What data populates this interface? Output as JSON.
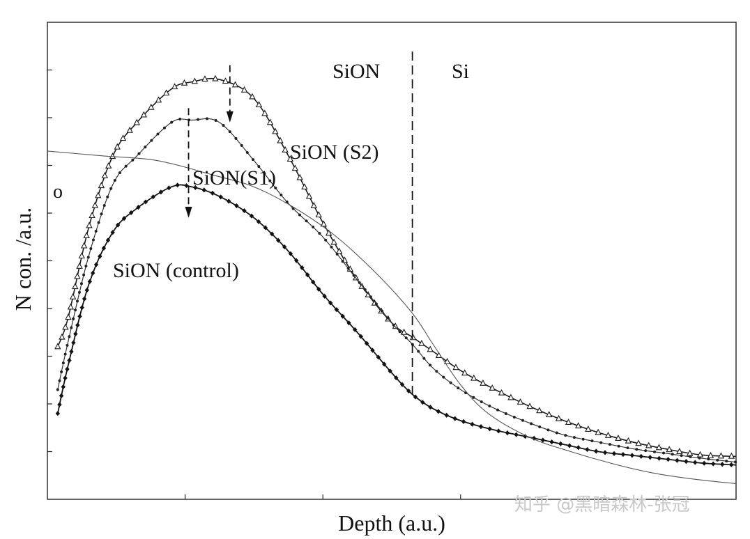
{
  "chart_data": {
    "type": "line",
    "xlabel": "Depth (a.u.)",
    "ylabel": "N con. /a.u.",
    "xlim": [
      0,
      100
    ],
    "ylim": [
      0,
      100
    ],
    "grid": false,
    "region_labels": [
      "SiON",
      "Si"
    ],
    "interface_x": 53,
    "axis_label_o": "o",
    "series": [
      {
        "name": "SiON (S2)",
        "marker": "triangle",
        "x": [
          1.5,
          3,
          6,
          9.5,
          13,
          18,
          21,
          25,
          30,
          35,
          40,
          45,
          50,
          53,
          56,
          60,
          65,
          70,
          75,
          80,
          85,
          90,
          95,
          100
        ],
        "y": [
          32,
          38,
          57,
          72,
          79,
          86,
          87.5,
          88,
          84,
          72,
          58,
          46,
          37,
          34,
          31,
          27,
          23,
          19.5,
          16.5,
          14,
          12,
          10.5,
          9.3,
          9
        ]
      },
      {
        "name": "SiON(S1)",
        "marker": "dot",
        "x": [
          1.5,
          3,
          6,
          9.5,
          13,
          18,
          21,
          25,
          30,
          35,
          40,
          45,
          50,
          53,
          56,
          60,
          65,
          70,
          75,
          80,
          85,
          90,
          95,
          100
        ],
        "y": [
          23,
          33,
          51,
          66,
          72,
          79,
          79.5,
          79,
          71,
          62,
          55,
          46,
          37,
          32.5,
          27.5,
          23,
          19,
          16,
          13.5,
          12,
          10.6,
          9.6,
          8.6,
          7.8
        ]
      },
      {
        "name": "SiON (control)",
        "marker": "diamond",
        "x": [
          1.5,
          3,
          6,
          9.5,
          13,
          18,
          21,
          25,
          30,
          35,
          40,
          45,
          50,
          53,
          56,
          60,
          65,
          70,
          75,
          80,
          85,
          90,
          95,
          100
        ],
        "y": [
          18,
          28,
          45,
          56,
          61,
          65.5,
          65.5,
          63.5,
          59,
          52,
          43,
          35,
          26.5,
          22,
          19,
          16.5,
          14.5,
          13,
          11.5,
          10,
          9.2,
          8.4,
          7.6,
          7.2
        ]
      },
      {
        "marker": "none",
        "x": [
          0,
          8,
          16,
          24,
          30,
          36,
          42,
          48,
          53,
          56,
          60,
          64,
          70,
          76,
          82,
          88,
          94,
          100
        ],
        "y": [
          73,
          72,
          71,
          68,
          65.5,
          61,
          55,
          47,
          39,
          32.5,
          24,
          18,
          13,
          10,
          7.5,
          5.5,
          4.2,
          3.3
        ]
      }
    ],
    "annotations": [
      {
        "text": "SiON (S2)",
        "anchor_x": 40,
        "anchor_y": 83
      },
      {
        "text": "SiON(S1)",
        "anchor_x": 22,
        "anchor_y": 77
      },
      {
        "text": "SiON (control)",
        "anchor_x": 10,
        "anchor_y": 52
      }
    ],
    "arrows": [
      {
        "x": 26.5,
        "y_from": 91,
        "y_to": 79
      },
      {
        "x": 20.5,
        "y_from": 82,
        "y_to": 59
      }
    ]
  },
  "watermark": "知乎 @黑暗森林-张冠"
}
